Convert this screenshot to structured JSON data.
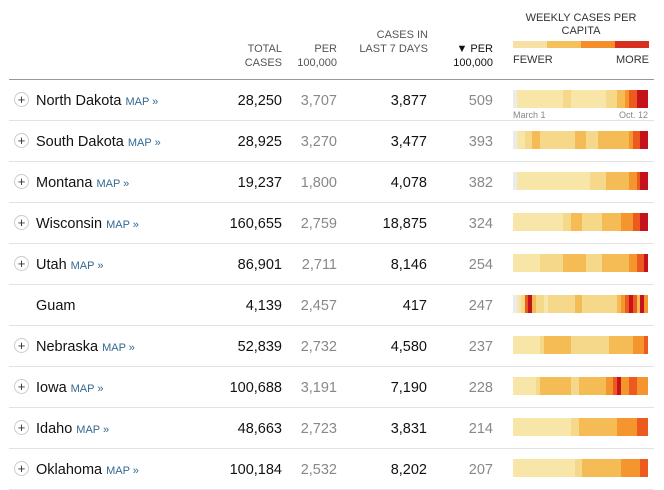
{
  "header": {
    "total_cases": "TOTAL CASES",
    "per_100k": "PER 100,000",
    "cases_last7": "CASES IN LAST 7 DAYS",
    "per_100k_sorted": "▼ PER 100,000",
    "legend_title": "WEEKLY CASES PER CAPITA",
    "legend_fewer": "FEWER",
    "legend_more": "MORE",
    "legend_colors": [
      "#f7e0a3",
      "#f5c15a",
      "#f58d2a",
      "#d7301f"
    ]
  },
  "map_label": "MAP »",
  "expand_icon": "+",
  "first_date": "March 1",
  "last_date": "Oct. 12",
  "rows": [
    {
      "state": "North Dakota",
      "expandable": true,
      "total": "28,250",
      "per": "3,707",
      "last7": "3,877",
      "sortper": "509"
    },
    {
      "state": "South Dakota",
      "expandable": true,
      "total": "28,925",
      "per": "3,270",
      "last7": "3,477",
      "sortper": "393"
    },
    {
      "state": "Montana",
      "expandable": true,
      "total": "19,237",
      "per": "1,800",
      "last7": "4,078",
      "sortper": "382"
    },
    {
      "state": "Wisconsin",
      "expandable": true,
      "total": "160,655",
      "per": "2,759",
      "last7": "18,875",
      "sortper": "324"
    },
    {
      "state": "Utah",
      "expandable": true,
      "total": "86,901",
      "per": "2,711",
      "last7": "8,146",
      "sortper": "254"
    },
    {
      "state": "Guam",
      "expandable": false,
      "total": "4,139",
      "per": "2,457",
      "last7": "417",
      "sortper": "247"
    },
    {
      "state": "Nebraska",
      "expandable": true,
      "total": "52,839",
      "per": "2,732",
      "last7": "4,580",
      "sortper": "237"
    },
    {
      "state": "Iowa",
      "expandable": true,
      "total": "100,688",
      "per": "3,191",
      "last7": "7,190",
      "sortper": "228"
    },
    {
      "state": "Idaho",
      "expandable": true,
      "total": "48,663",
      "per": "2,723",
      "last7": "3,831",
      "sortper": "214"
    },
    {
      "state": "Oklahoma",
      "expandable": true,
      "total": "100,184",
      "per": "2,532",
      "last7": "8,202",
      "sortper": "207"
    }
  ],
  "spark_levels": [
    [
      0,
      1,
      1,
      1,
      1,
      1,
      1,
      1,
      1,
      1,
      1,
      1,
      1,
      2,
      2,
      1,
      1,
      1,
      1,
      1,
      1,
      1,
      1,
      1,
      2,
      2,
      2,
      3,
      3,
      4,
      5,
      5,
      6,
      6,
      6
    ],
    [
      0,
      1,
      1,
      2,
      2,
      3,
      3,
      2,
      2,
      2,
      2,
      2,
      2,
      2,
      2,
      2,
      3,
      3,
      3,
      2,
      2,
      2,
      3,
      3,
      3,
      3,
      3,
      3,
      3,
      3,
      4,
      5,
      5,
      6,
      6
    ],
    [
      0,
      1,
      1,
      1,
      1,
      1,
      1,
      1,
      1,
      1,
      1,
      1,
      1,
      1,
      1,
      1,
      1,
      1,
      1,
      1,
      2,
      2,
      2,
      2,
      3,
      3,
      3,
      3,
      3,
      3,
      4,
      4,
      5,
      6,
      6
    ],
    [
      1,
      1,
      1,
      1,
      1,
      1,
      1,
      1,
      1,
      1,
      1,
      1,
      1,
      2,
      2,
      3,
      3,
      3,
      2,
      2,
      2,
      2,
      2,
      3,
      3,
      3,
      3,
      3,
      4,
      4,
      4,
      5,
      5,
      6,
      6
    ],
    [
      1,
      1,
      1,
      1,
      1,
      1,
      1,
      2,
      2,
      2,
      2,
      2,
      2,
      3,
      3,
      3,
      3,
      3,
      3,
      2,
      2,
      2,
      2,
      3,
      3,
      3,
      3,
      3,
      3,
      3,
      4,
      4,
      5,
      5,
      6
    ],
    [
      0,
      1,
      2,
      5,
      6,
      3,
      2,
      2,
      1,
      2,
      2,
      2,
      2,
      2,
      2,
      2,
      3,
      3,
      2,
      2,
      2,
      2,
      2,
      2,
      2,
      2,
      2,
      3,
      4,
      5,
      6,
      5,
      3,
      6,
      4
    ],
    [
      1,
      1,
      1,
      1,
      1,
      1,
      1,
      2,
      3,
      3,
      3,
      3,
      3,
      3,
      3,
      2,
      2,
      2,
      2,
      2,
      2,
      2,
      2,
      2,
      2,
      3,
      3,
      3,
      3,
      3,
      3,
      4,
      4,
      4,
      5
    ],
    [
      1,
      1,
      1,
      1,
      1,
      1,
      2,
      3,
      3,
      3,
      3,
      3,
      3,
      3,
      3,
      2,
      2,
      3,
      3,
      3,
      3,
      3,
      3,
      3,
      4,
      4,
      5,
      6,
      4,
      4,
      5,
      5,
      4,
      4,
      4
    ],
    [
      1,
      1,
      1,
      1,
      1,
      1,
      1,
      1,
      1,
      1,
      1,
      1,
      1,
      1,
      1,
      2,
      2,
      3,
      3,
      3,
      3,
      3,
      3,
      3,
      3,
      3,
      3,
      4,
      4,
      4,
      4,
      4,
      5,
      5,
      5
    ],
    [
      1,
      1,
      1,
      1,
      1,
      1,
      1,
      1,
      1,
      1,
      1,
      1,
      1,
      1,
      1,
      1,
      2,
      2,
      3,
      3,
      3,
      3,
      3,
      3,
      3,
      3,
      3,
      3,
      4,
      4,
      4,
      4,
      4,
      5,
      5
    ]
  ],
  "spark_palette": [
    "#ebebeb",
    "#f7e6a8",
    "#f6d88a",
    "#f5bb55",
    "#f5952d",
    "#ec5a20",
    "#c4131a"
  ]
}
